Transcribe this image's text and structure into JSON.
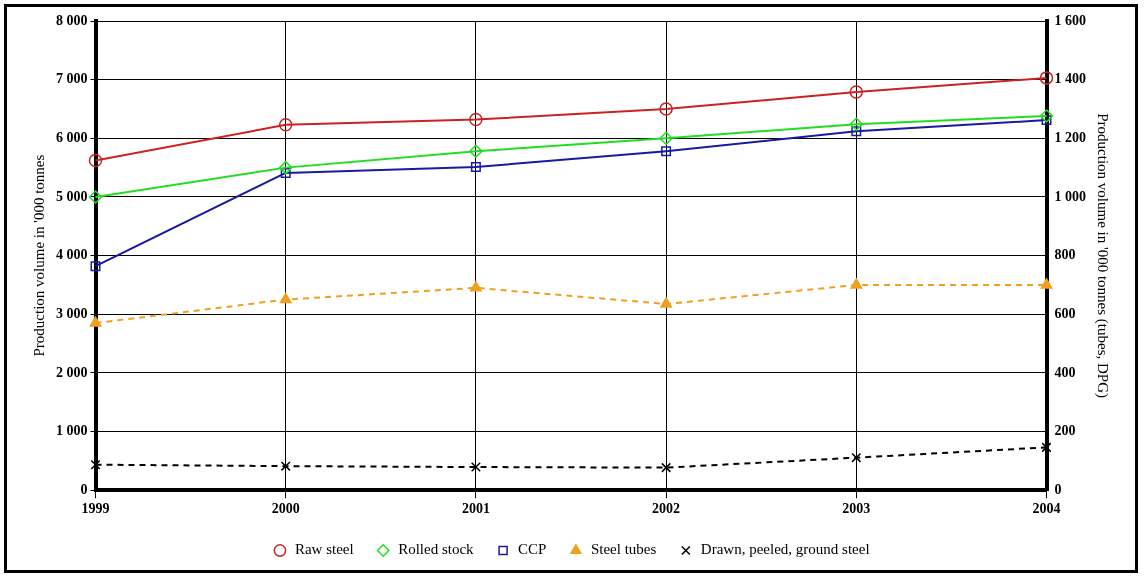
{
  "chart_data": {
    "type": "line",
    "categories": [
      "1999",
      "2000",
      "2001",
      "2002",
      "2003",
      "2004"
    ],
    "ylabel": "Production volume in '000 tonnes",
    "y2label": "Production volume in '000 tonnes (tubes, DPG)",
    "ylim": [
      0,
      8000
    ],
    "yticks": [
      {
        "value": 0,
        "label": "0"
      },
      {
        "value": 1000,
        "label": "1 000"
      },
      {
        "value": 2000,
        "label": "2 000"
      },
      {
        "value": 3000,
        "label": "3 000"
      },
      {
        "value": 4000,
        "label": "4 000"
      },
      {
        "value": 5000,
        "label": "5 000"
      },
      {
        "value": 6000,
        "label": "6 000"
      },
      {
        "value": 7000,
        "label": "7 000"
      },
      {
        "value": 8000,
        "label": "8 000"
      }
    ],
    "y2lim": [
      0,
      1600
    ],
    "y2ticks": [
      0,
      200,
      400,
      600,
      800,
      {
        "value": 1000,
        "label": "1 000"
      },
      {
        "value": 1200,
        "label": "1 200"
      },
      {
        "value": 1400,
        "label": "1 400"
      },
      {
        "value": 1600,
        "label": "1 600"
      }
    ],
    "grid": true,
    "legend": "bottom",
    "series": [
      {
        "name": "Raw steel",
        "color": "#cc2222",
        "marker": "circle",
        "line_style": "solid",
        "values": [
          5620,
          6230,
          6320,
          6500,
          6790,
          7030
        ]
      },
      {
        "name": "Rolled stock",
        "color": "#22dd22",
        "marker": "diamond",
        "line_style": "solid",
        "values": [
          5000,
          5500,
          5780,
          6000,
          6240,
          6380
        ]
      },
      {
        "name": "CCP",
        "color": "#1a1aa0",
        "marker": "square",
        "line_style": "solid",
        "values": [
          3820,
          5410,
          5510,
          5780,
          6120,
          6310
        ]
      },
      {
        "name": "Steel tubes",
        "color": "#f0a020",
        "marker": "triangle",
        "line_style": "dashed",
        "axis": "y2",
        "values": [
          570,
          650,
          690,
          635,
          700,
          700
        ]
      },
      {
        "name": "Drawn, peeled, ground steel",
        "color": "#000000",
        "marker": "cross",
        "line_style": "dashed",
        "axis": "y2",
        "values": [
          87,
          82,
          79,
          77,
          111,
          146
        ]
      }
    ]
  }
}
